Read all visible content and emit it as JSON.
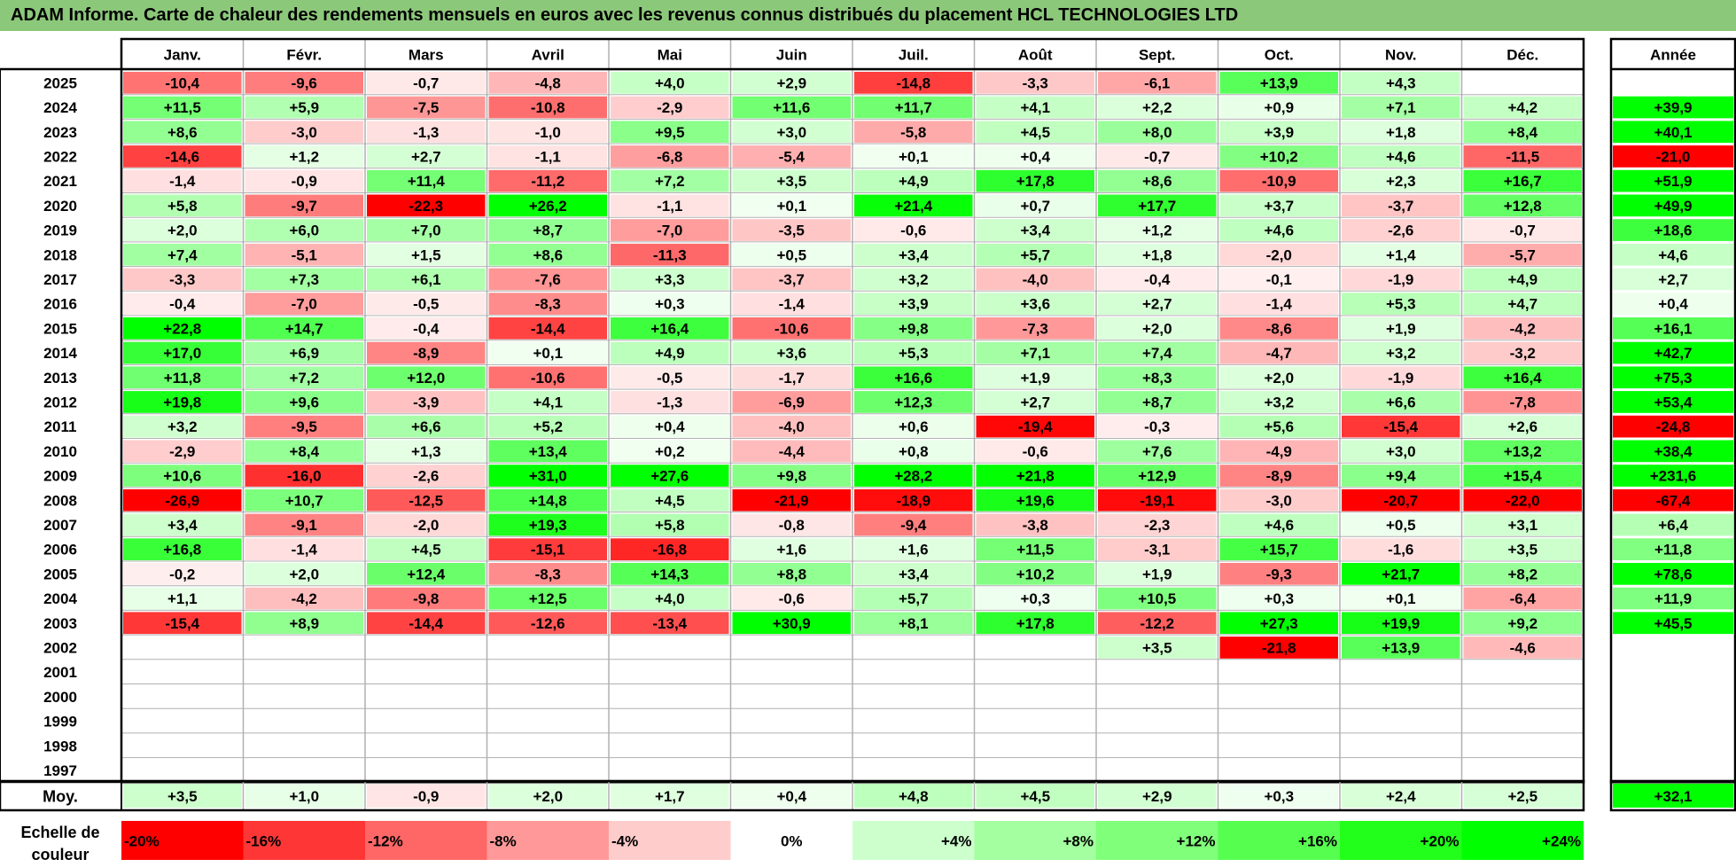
{
  "title": "ADAM Informe. Carte de chaleur des rendements mensuels en euros avec les revenus connus distribués du placement HCL TECHNOLOGIES LTD",
  "chart_data": {
    "type": "heatmap",
    "columns": [
      "Janv.",
      "Févr.",
      "Mars",
      "Avril",
      "Mai",
      "Juin",
      "Juil.",
      "Août",
      "Sept.",
      "Oct.",
      "Nov.",
      "Déc."
    ],
    "year_column_label": "Année",
    "rows": [
      {
        "year": "2025",
        "values": [
          "-10,4",
          "-9,6",
          "-0,7",
          "-4,8",
          "+4,0",
          "+2,9",
          "-14,8",
          "-3,3",
          "-6,1",
          "+13,9",
          "+4,3",
          ""
        ],
        "annual": ""
      },
      {
        "year": "2024",
        "values": [
          "+11,5",
          "+5,9",
          "-7,5",
          "-10,8",
          "-2,9",
          "+11,6",
          "+11,7",
          "+4,1",
          "+2,2",
          "+0,9",
          "+7,1",
          "+4,2"
        ],
        "annual": "+39,9"
      },
      {
        "year": "2023",
        "values": [
          "+8,6",
          "-3,0",
          "-1,3",
          "-1,0",
          "+9,5",
          "+3,0",
          "-5,8",
          "+4,5",
          "+8,0",
          "+3,9",
          "+1,8",
          "+8,4"
        ],
        "annual": "+40,1"
      },
      {
        "year": "2022",
        "values": [
          "-14,6",
          "+1,2",
          "+2,7",
          "-1,1",
          "-6,8",
          "-5,4",
          "+0,1",
          "+0,4",
          "-0,7",
          "+10,2",
          "+4,6",
          "-11,5"
        ],
        "annual": "-21,0"
      },
      {
        "year": "2021",
        "values": [
          "-1,4",
          "-0,9",
          "+11,4",
          "-11,2",
          "+7,2",
          "+3,5",
          "+4,9",
          "+17,8",
          "+8,6",
          "-10,9",
          "+2,3",
          "+16,7"
        ],
        "annual": "+51,9"
      },
      {
        "year": "2020",
        "values": [
          "+5,8",
          "-9,7",
          "-22,3",
          "+26,2",
          "-1,1",
          "+0,1",
          "+21,4",
          "+0,7",
          "+17,7",
          "+3,7",
          "-3,7",
          "+12,8"
        ],
        "annual": "+49,9"
      },
      {
        "year": "2019",
        "values": [
          "+2,0",
          "+6,0",
          "+7,0",
          "+8,7",
          "-7,0",
          "-3,5",
          "-0,6",
          "+3,4",
          "+1,2",
          "+4,6",
          "-2,6",
          "-0,7"
        ],
        "annual": "+18,6"
      },
      {
        "year": "2018",
        "values": [
          "+7,4",
          "-5,1",
          "+1,5",
          "+8,6",
          "-11,3",
          "+0,5",
          "+3,4",
          "+5,7",
          "+1,8",
          "-2,0",
          "+1,4",
          "-5,7"
        ],
        "annual": "+4,6"
      },
      {
        "year": "2017",
        "values": [
          "-3,3",
          "+7,3",
          "+6,1",
          "-7,6",
          "+3,3",
          "-3,7",
          "+3,2",
          "-4,0",
          "-0,4",
          "-0,1",
          "-1,9",
          "+4,9"
        ],
        "annual": "+2,7"
      },
      {
        "year": "2016",
        "values": [
          "-0,4",
          "-7,0",
          "-0,5",
          "-8,3",
          "+0,3",
          "-1,4",
          "+3,9",
          "+3,6",
          "+2,7",
          "-1,4",
          "+5,3",
          "+4,7"
        ],
        "annual": "+0,4"
      },
      {
        "year": "2015",
        "values": [
          "+22,8",
          "+14,7",
          "-0,4",
          "-14,4",
          "+16,4",
          "-10,6",
          "+9,8",
          "-7,3",
          "+2,0",
          "-8,6",
          "+1,9",
          "-4,2"
        ],
        "annual": "+16,1"
      },
      {
        "year": "2014",
        "values": [
          "+17,0",
          "+6,9",
          "-8,9",
          "+0,1",
          "+4,9",
          "+3,6",
          "+5,3",
          "+7,1",
          "+7,4",
          "-4,7",
          "+3,2",
          "-3,2"
        ],
        "annual": "+42,7"
      },
      {
        "year": "2013",
        "values": [
          "+11,8",
          "+7,2",
          "+12,0",
          "-10,6",
          "-0,5",
          "-1,7",
          "+16,6",
          "+1,9",
          "+8,3",
          "+2,0",
          "-1,9",
          "+16,4"
        ],
        "annual": "+75,3"
      },
      {
        "year": "2012",
        "values": [
          "+19,8",
          "+9,6",
          "-3,9",
          "+4,1",
          "-1,3",
          "-6,9",
          "+12,3",
          "+2,7",
          "+8,7",
          "+3,2",
          "+6,6",
          "-7,8"
        ],
        "annual": "+53,4"
      },
      {
        "year": "2011",
        "values": [
          "+3,2",
          "-9,5",
          "+6,6",
          "+5,2",
          "+0,4",
          "-4,0",
          "+0,6",
          "-19,4",
          "-0,3",
          "+5,6",
          "-15,4",
          "+2,6"
        ],
        "annual": "-24,8"
      },
      {
        "year": "2010",
        "values": [
          "-2,9",
          "+8,4",
          "+1,3",
          "+13,4",
          "+0,2",
          "-4,4",
          "+0,8",
          "-0,6",
          "+7,6",
          "-4,9",
          "+3,0",
          "+13,2"
        ],
        "annual": "+38,4"
      },
      {
        "year": "2009",
        "values": [
          "+10,6",
          "-16,0",
          "-2,6",
          "+31,0",
          "+27,6",
          "+9,8",
          "+28,2",
          "+21,8",
          "+12,9",
          "-8,9",
          "+9,4",
          "+15,4"
        ],
        "annual": "+231,6"
      },
      {
        "year": "2008",
        "values": [
          "-26,9",
          "+10,7",
          "-12,5",
          "+14,8",
          "+4,5",
          "-21,9",
          "-18,9",
          "+19,6",
          "-19,1",
          "-3,0",
          "-20,7",
          "-22,0"
        ],
        "annual": "-67,4"
      },
      {
        "year": "2007",
        "values": [
          "+3,4",
          "-9,1",
          "-2,0",
          "+19,3",
          "+5,8",
          "-0,8",
          "-9,4",
          "-3,8",
          "-2,3",
          "+4,6",
          "+0,5",
          "+3,1"
        ],
        "annual": "+6,4"
      },
      {
        "year": "2006",
        "values": [
          "+16,8",
          "-1,4",
          "+4,5",
          "-15,1",
          "-16,8",
          "+1,6",
          "+1,6",
          "+11,5",
          "-3,1",
          "+15,7",
          "-1,6",
          "+3,5"
        ],
        "annual": "+11,8"
      },
      {
        "year": "2005",
        "values": [
          "-0,2",
          "+2,0",
          "+12,4",
          "-8,3",
          "+14,3",
          "+8,8",
          "+3,4",
          "+10,2",
          "+1,9",
          "-9,3",
          "+21,7",
          "+8,2"
        ],
        "annual": "+78,6"
      },
      {
        "year": "2004",
        "values": [
          "+1,1",
          "-4,2",
          "-9,8",
          "+12,5",
          "+4,0",
          "-0,6",
          "+5,7",
          "+0,3",
          "+10,5",
          "+0,3",
          "+0,1",
          "-6,4"
        ],
        "annual": "+11,9"
      },
      {
        "year": "2003",
        "values": [
          "-15,4",
          "+8,9",
          "-14,4",
          "-12,6",
          "-13,4",
          "+30,9",
          "+8,1",
          "+17,8",
          "-12,2",
          "+27,3",
          "+19,9",
          "+9,2"
        ],
        "annual": "+45,5"
      },
      {
        "year": "2002",
        "values": [
          "",
          "",
          "",
          "",
          "",
          "",
          "",
          "",
          "+3,5",
          "-21,8",
          "+13,9",
          "-4,6"
        ],
        "annual": ""
      },
      {
        "year": "2001",
        "values": [
          "",
          "",
          "",
          "",
          "",
          "",
          "",
          "",
          "",
          "",
          "",
          ""
        ],
        "annual": ""
      },
      {
        "year": "2000",
        "values": [
          "",
          "",
          "",
          "",
          "",
          "",
          "",
          "",
          "",
          "",
          "",
          ""
        ],
        "annual": ""
      },
      {
        "year": "1999",
        "values": [
          "",
          "",
          "",
          "",
          "",
          "",
          "",
          "",
          "",
          "",
          "",
          ""
        ],
        "annual": ""
      },
      {
        "year": "1998",
        "values": [
          "",
          "",
          "",
          "",
          "",
          "",
          "",
          "",
          "",
          "",
          "",
          ""
        ],
        "annual": ""
      },
      {
        "year": "1997",
        "values": [
          "",
          "",
          "",
          "",
          "",
          "",
          "",
          "",
          "",
          "",
          "",
          ""
        ],
        "annual": ""
      }
    ],
    "average": {
      "label": "Moy.",
      "values": [
        "+3,5",
        "+1,0",
        "-0,9",
        "+2,0",
        "+1,7",
        "+0,4",
        "+4,8",
        "+4,5",
        "+2,9",
        "+0,3",
        "+2,4",
        "+2,5"
      ],
      "annual": "+32,1"
    },
    "scale": {
      "label_lines": [
        "Echelle de",
        "couleur"
      ],
      "steps": [
        {
          "label": "-20%",
          "color": "#ff0000",
          "align": "left"
        },
        {
          "label": "-16%",
          "color": "#ff3636",
          "align": "left"
        },
        {
          "label": "-12%",
          "color": "#ff6767",
          "align": "left"
        },
        {
          "label": "-8%",
          "color": "#ff9999",
          "align": "left"
        },
        {
          "label": "-4%",
          "color": "#ffcccc",
          "align": "left"
        },
        {
          "label": "0%",
          "color": "#ffffff",
          "align": "center"
        },
        {
          "label": "+4%",
          "color": "#ccffcc",
          "align": "right"
        },
        {
          "label": "+8%",
          "color": "#a3ff9f",
          "align": "right"
        },
        {
          "label": "+12%",
          "color": "#80ff7a",
          "align": "right"
        },
        {
          "label": "+16%",
          "color": "#56ff4f",
          "align": "right"
        },
        {
          "label": "+20%",
          "color": "#22ff1a",
          "align": "right"
        },
        {
          "label": "+24%",
          "color": "#00ff00",
          "align": "right"
        }
      ]
    },
    "colors": {
      "title_bar": "#8cc87a",
      "positive_max": "#00ff00",
      "negative_max": "#ff0000",
      "grid": "#b0b0b0"
    }
  }
}
